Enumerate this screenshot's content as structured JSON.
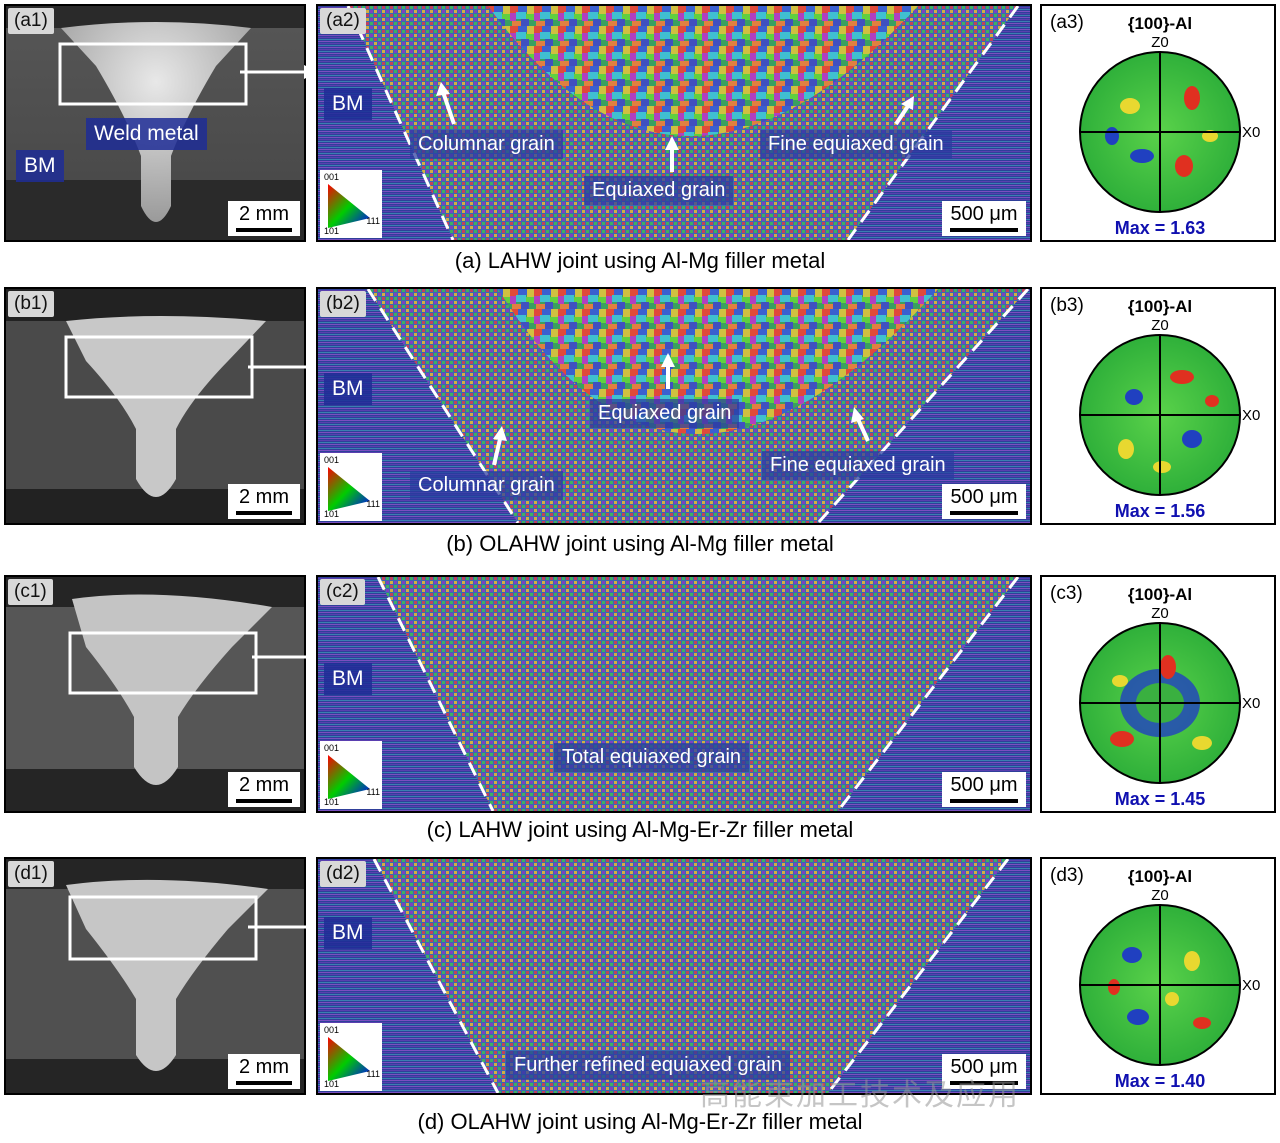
{
  "colors": {
    "bm_bg": "#1e2d96",
    "max_text": "#1010b0",
    "grain_label_bg": "#283ca0"
  },
  "rows": [
    {
      "id": "a",
      "macro_tag": "(a1)",
      "ebsd_tag": "(a2)",
      "pole_tag": "(a3)",
      "macro_labels": {
        "weld": "Weld metal",
        "bm": "BM"
      },
      "macro_scale": "2 mm",
      "ebsd_bm": "BM",
      "grain_labels": [
        "Columnar grain",
        "Equiaxed grain",
        "Fine equiaxed grain"
      ],
      "ebsd_scale": "500 μm",
      "pole": {
        "title": "{100}-Al",
        "z": "Z0",
        "x": "X0",
        "max": "Max = 1.63"
      },
      "caption": "(a) LAHW joint using Al-Mg filler metal"
    },
    {
      "id": "b",
      "macro_tag": "(b1)",
      "ebsd_tag": "(b2)",
      "pole_tag": "(b3)",
      "macro_scale": "2 mm",
      "ebsd_bm": "BM",
      "grain_labels": [
        "Equiaxed grain",
        "Columnar grain",
        "Fine equiaxed grain"
      ],
      "ebsd_scale": "500 μm",
      "pole": {
        "title": "{100}-Al",
        "z": "Z0",
        "x": "X0",
        "max": "Max = 1.56"
      },
      "caption": "(b) OLAHW joint using Al-Mg filler metal"
    },
    {
      "id": "c",
      "macro_tag": "(c1)",
      "ebsd_tag": "(c2)",
      "pole_tag": "(c3)",
      "macro_scale": "2 mm",
      "ebsd_bm": "BM",
      "grain_labels": [
        "Total equiaxed grain"
      ],
      "ebsd_scale": "500 μm",
      "pole": {
        "title": "{100}-Al",
        "z": "Z0",
        "x": "X0",
        "max": "Max = 1.45"
      },
      "caption": "(c) LAHW joint using Al-Mg-Er-Zr filler metal"
    },
    {
      "id": "d",
      "macro_tag": "(d1)",
      "ebsd_tag": "(d2)",
      "pole_tag": "(d3)",
      "macro_scale": "2 mm",
      "ebsd_bm": "BM",
      "grain_labels": [
        "Further refined equiaxed grain"
      ],
      "ebsd_scale": "500 μm",
      "pole": {
        "title": "{100}-Al",
        "z": "Z0",
        "x": "X0",
        "max": "Max = 1.40"
      },
      "caption": "(d) OLAHW joint using Al-Mg-Er-Zr filler metal"
    }
  ],
  "ipf_legend": {
    "c001": "001",
    "c101": "101",
    "c111": "111"
  },
  "watermark": "高能束加工技术及应用"
}
